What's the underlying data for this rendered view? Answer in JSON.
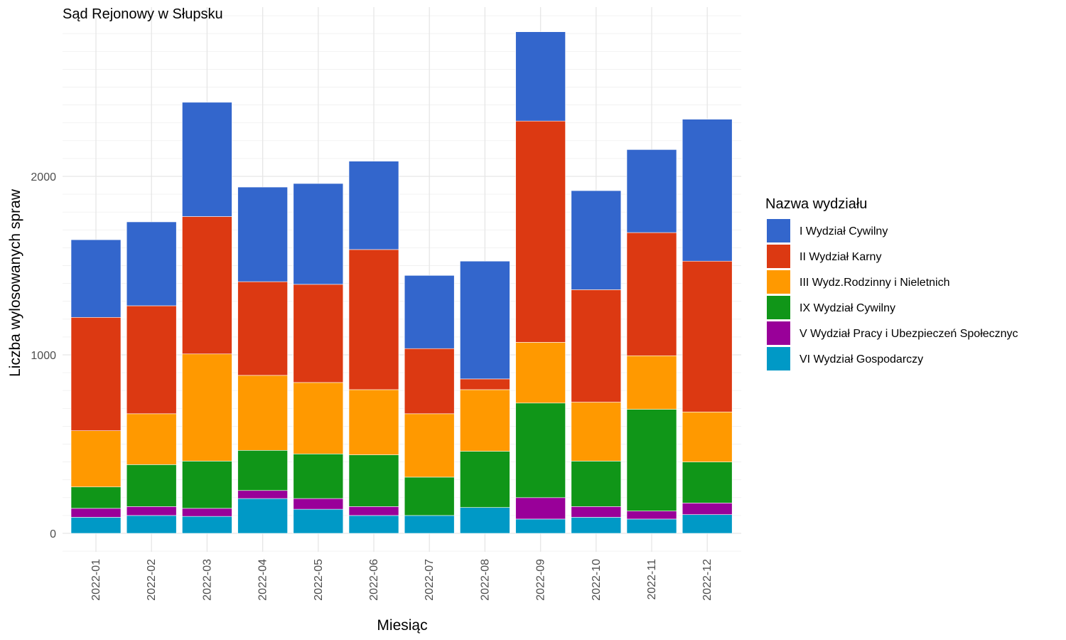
{
  "chart_data": {
    "type": "bar",
    "stacked": true,
    "title": "Sąd Rejonowy w Słupsku",
    "xlabel": "Miesiąc",
    "ylabel": "Liczba wylosowanych spraw",
    "ylim": [
      0,
      2900
    ],
    "yticks": [
      0,
      1000,
      2000
    ],
    "grid": true,
    "legend_title": "Nazwa wydziału",
    "legend_position": "right",
    "categories": [
      "2022-01",
      "2022-02",
      "2022-03",
      "2022-04",
      "2022-05",
      "2022-06",
      "2022-07",
      "2022-08",
      "2022-09",
      "2022-10",
      "2022-11",
      "2022-12"
    ],
    "series": [
      {
        "name": "VI Wydział Gospodarczy",
        "color": "#0099C6",
        "values": [
          90,
          100,
          95,
          195,
          135,
          100,
          100,
          145,
          80,
          90,
          80,
          105
        ]
      },
      {
        "name": "V Wydział Pracy i Ubezpieczeń Społecznyc",
        "color": "#990099",
        "values": [
          50,
          50,
          45,
          45,
          60,
          50,
          0,
          0,
          120,
          60,
          45,
          65
        ]
      },
      {
        "name": "IX Wydział Cywilny",
        "color": "#109618",
        "values": [
          120,
          235,
          265,
          225,
          250,
          290,
          215,
          315,
          530,
          255,
          570,
          230
        ]
      },
      {
        "name": "III Wydz.Rodzinny i Nieletnich",
        "color": "#FF9900",
        "values": [
          315,
          285,
          600,
          420,
          400,
          365,
          355,
          345,
          340,
          330,
          300,
          280
        ]
      },
      {
        "name": "II Wydział Karny",
        "color": "#DC3912",
        "values": [
          635,
          605,
          770,
          525,
          550,
          785,
          365,
          60,
          1240,
          630,
          690,
          845
        ]
      },
      {
        "name": "I Wydział Cywilny",
        "color": "#3366CC",
        "values": [
          435,
          470,
          640,
          530,
          565,
          495,
          410,
          660,
          500,
          555,
          465,
          795
        ]
      }
    ]
  }
}
